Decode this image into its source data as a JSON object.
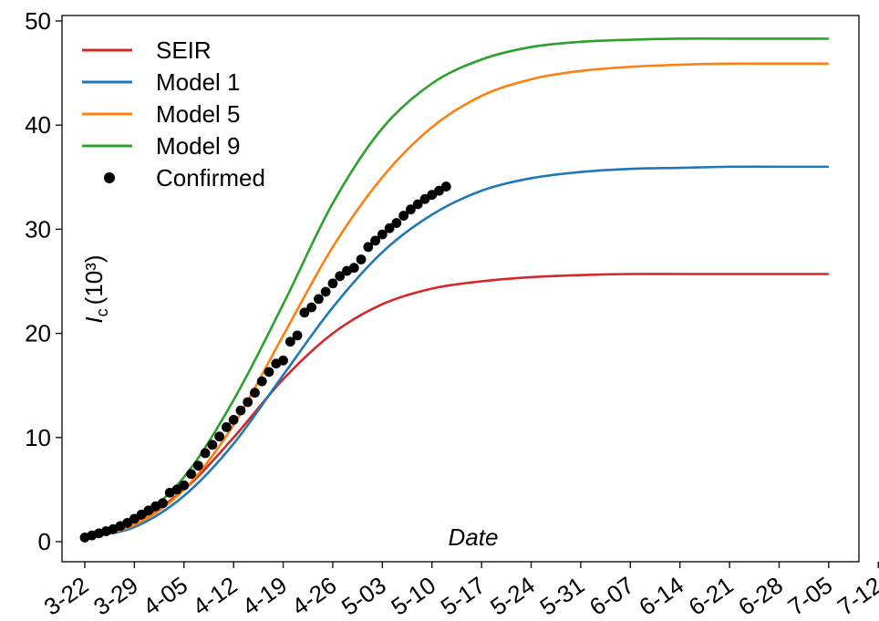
{
  "chart_data": {
    "type": "line",
    "xlabel": "Date",
    "ylabel": {
      "main": "I",
      "sub": "c",
      "unit": "(10³)"
    },
    "ylim": [
      0,
      50
    ],
    "yticks": [
      0,
      10,
      20,
      30,
      40,
      50
    ],
    "xticks": [
      "3-22",
      "3-29",
      "4-05",
      "4-12",
      "4-19",
      "4-26",
      "5-03",
      "5-10",
      "5-17",
      "5-24",
      "5-31",
      "6-07",
      "6-14",
      "6-21",
      "6-28",
      "7-05",
      "7-12"
    ],
    "xlim": [
      "3-20",
      "7-14"
    ],
    "grid": false,
    "legend_placement": "top-left",
    "series": [
      {
        "name": "SEIR",
        "kind": "line",
        "color": "#d62728",
        "x": [
          "3-22",
          "3-29",
          "4-05",
          "4-12",
          "4-19",
          "4-26",
          "5-03",
          "5-10",
          "5-17",
          "5-24",
          "5-31",
          "6-07",
          "6-14",
          "6-21",
          "6-28",
          "7-05"
        ],
        "values": [
          0.4,
          1.9,
          5.0,
          10.0,
          15.6,
          20.0,
          22.8,
          24.3,
          25.0,
          25.4,
          25.6,
          25.7,
          25.7,
          25.7,
          25.7,
          25.7
        ]
      },
      {
        "name": "Model 1",
        "kind": "line",
        "color": "#1f77b4",
        "x": [
          "3-22",
          "3-29",
          "4-05",
          "4-12",
          "4-19",
          "4-26",
          "5-03",
          "5-10",
          "5-17",
          "5-24",
          "5-31",
          "6-07",
          "6-14",
          "6-21",
          "6-28",
          "7-05"
        ],
        "values": [
          0.4,
          1.4,
          4.4,
          9.4,
          16.0,
          22.5,
          27.8,
          31.4,
          33.7,
          34.9,
          35.5,
          35.8,
          35.9,
          36.0,
          36.0,
          36.0
        ]
      },
      {
        "name": "Model 5",
        "kind": "line",
        "color": "#ff7f0e",
        "x": [
          "3-22",
          "3-29",
          "4-05",
          "4-12",
          "4-19",
          "4-26",
          "5-03",
          "5-10",
          "5-17",
          "5-24",
          "5-31",
          "6-07",
          "6-14",
          "6-21",
          "6-28",
          "7-05"
        ],
        "values": [
          0.4,
          1.6,
          5.0,
          11.2,
          19.8,
          28.3,
          35.0,
          39.8,
          42.8,
          44.4,
          45.2,
          45.6,
          45.8,
          45.9,
          45.9,
          45.9
        ]
      },
      {
        "name": "Model 9",
        "kind": "line",
        "color": "#2ca02c",
        "x": [
          "3-22",
          "3-29",
          "4-05",
          "4-12",
          "4-19",
          "4-26",
          "5-03",
          "5-10",
          "5-17",
          "5-24",
          "5-31",
          "6-07",
          "6-14",
          "6-21",
          "6-28",
          "7-05"
        ],
        "values": [
          0.4,
          2.0,
          6.2,
          13.6,
          22.8,
          32.5,
          39.7,
          44.0,
          46.3,
          47.5,
          48.0,
          48.2,
          48.3,
          48.3,
          48.3,
          48.3
        ]
      },
      {
        "name": "Confirmed",
        "kind": "scatter",
        "color": "#000000",
        "x": [
          "3-22",
          "3-23",
          "3-24",
          "3-25",
          "3-26",
          "3-27",
          "3-28",
          "3-29",
          "3-30",
          "3-31",
          "4-01",
          "4-02",
          "4-03",
          "4-04",
          "4-05",
          "4-06",
          "4-07",
          "4-08",
          "4-09",
          "4-10",
          "4-11",
          "4-12",
          "4-13",
          "4-14",
          "4-15",
          "4-16",
          "4-17",
          "4-18",
          "4-19",
          "4-20",
          "4-21",
          "4-22",
          "4-23",
          "4-24",
          "4-25",
          "4-26",
          "4-27",
          "4-28",
          "4-29",
          "4-30",
          "5-01",
          "5-02",
          "5-03",
          "5-04",
          "5-05",
          "5-06",
          "5-07",
          "5-08",
          "5-09",
          "5-10",
          "5-11",
          "5-12"
        ],
        "values": [
          0.4,
          0.6,
          0.8,
          1.0,
          1.2,
          1.5,
          1.8,
          2.2,
          2.6,
          3.0,
          3.4,
          3.7,
          4.7,
          5.0,
          5.4,
          6.5,
          7.3,
          8.5,
          9.3,
          10.1,
          11.0,
          11.7,
          12.6,
          13.4,
          14.3,
          15.4,
          16.3,
          17.1,
          17.4,
          19.2,
          19.8,
          22.0,
          22.5,
          23.3,
          24.0,
          24.8,
          25.5,
          26.0,
          26.3,
          27.1,
          28.3,
          28.9,
          29.5,
          30.1,
          30.6,
          31.3,
          31.9,
          32.4,
          32.9,
          33.3,
          33.7,
          34.1
        ]
      }
    ]
  }
}
